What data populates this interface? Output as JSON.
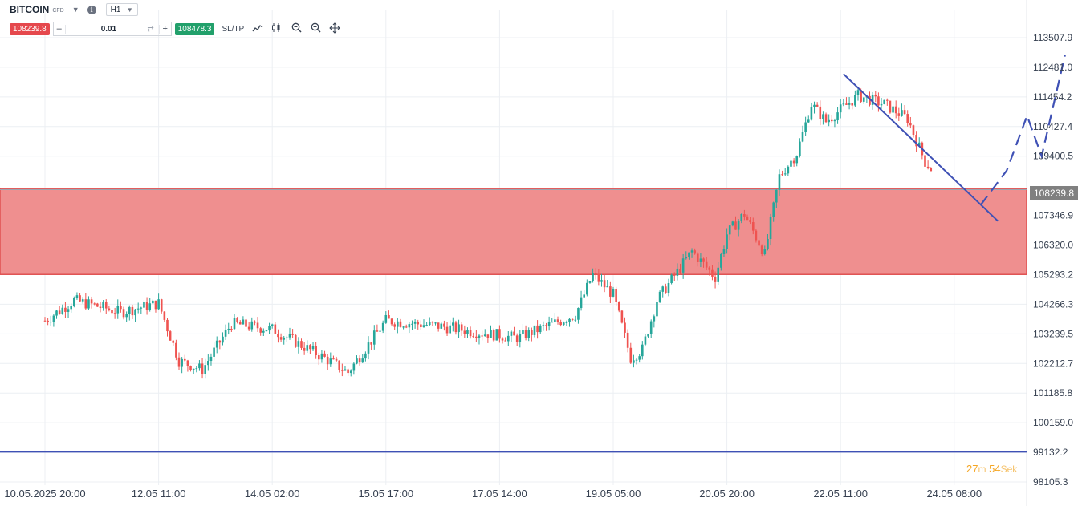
{
  "toolbar": {
    "symbol": "BITCOIN",
    "symbol_tag": "CFD",
    "timeframe": "H1",
    "sell_price": "108239.8",
    "minus": "–",
    "quantity": "0.01",
    "plus": "+",
    "buy_price": "108478.3",
    "sltp_label": "SL/TP",
    "icons": [
      "chart-type-icon",
      "indicators-icon",
      "zoom-out-icon",
      "zoom-in-icon",
      "crosshair-icon"
    ]
  },
  "price_tag": "108239.8",
  "timer": {
    "min": "27",
    "min_unit": "m",
    "sec": "54",
    "sec_unit": "Sek"
  },
  "colors": {
    "up": "#26a69a",
    "down": "#ef5350",
    "zone_fill": "#ef8f8f",
    "zone_border": "#e05050",
    "drawing": "#3f51b5",
    "grid": "#eceff3",
    "price_tag_bg": "#808080",
    "timer": "#f5a623"
  },
  "chart_data": {
    "type": "candlestick",
    "title": "",
    "y_ticks": [
      "113507.9",
      "112481.0",
      "111454.2",
      "110427.4",
      "109400.5",
      "107346.9",
      "106320.0",
      "105293.2",
      "104266.3",
      "103239.5",
      "102212.7",
      "101185.8",
      "100159.0",
      "99132.2",
      "98105.3"
    ],
    "x_ticks": [
      "10.05.2025 20:00",
      "12.05 11:00",
      "14.05 02:00",
      "15.05 17:00",
      "17.05 14:00",
      "19.05 05:00",
      "20.05 20:00",
      "22.05 11:00",
      "24.05 08:00"
    ],
    "ylim": [
      98105.3,
      113507.9
    ],
    "current_price": 108239.8,
    "resistance_zone": [
      105300,
      108280
    ],
    "support_line": 99150,
    "trendline": [
      {
        "x": "22.05 06:00",
        "y": 112250
      },
      {
        "x": "24.05 11:00",
        "y": 107150
      }
    ],
    "projection": [
      {
        "x": "24.05 05:00",
        "y": 107700
      },
      {
        "x": "24.05 14:00",
        "y": 108900
      },
      {
        "x": "24.05 21:00",
        "y": 110800
      },
      {
        "x": "25.05 02:00",
        "y": 109400
      },
      {
        "x": "25.05 10:00",
        "y": 112900
      }
    ],
    "candles_anchors": [
      {
        "x": "10.05.2025 20:00",
        "close": 103700
      },
      {
        "x": "11.05 06:00",
        "close": 104400
      },
      {
        "x": "11.05 22:00",
        "close": 104000
      },
      {
        "x": "12.05 11:00",
        "close": 104300
      },
      {
        "x": "12.05 18:00",
        "close": 102300
      },
      {
        "x": "13.05 02:00",
        "close": 102000
      },
      {
        "x": "13.05 12:00",
        "close": 103600
      },
      {
        "x": "14.05 02:00",
        "close": 103400
      },
      {
        "x": "14.05 20:00",
        "close": 102400
      },
      {
        "x": "15.05 04:00",
        "close": 101900
      },
      {
        "x": "15.05 17:00",
        "close": 103700
      },
      {
        "x": "16.05 12:00",
        "close": 103500
      },
      {
        "x": "17.05 00:00",
        "close": 103300
      },
      {
        "x": "17.05 14:00",
        "close": 103100
      },
      {
        "x": "18.05 10:00",
        "close": 103900
      },
      {
        "x": "18.05 16:00",
        "close": 105300
      },
      {
        "x": "18.05 23:00",
        "close": 104600
      },
      {
        "x": "19.05 05:00",
        "close": 102400
      },
      {
        "x": "19.05 09:00",
        "close": 102700
      },
      {
        "x": "19.05 14:00",
        "close": 104400
      },
      {
        "x": "20.05 02:00",
        "close": 106100
      },
      {
        "x": "20.05 10:00",
        "close": 105200
      },
      {
        "x": "20.05 14:00",
        "close": 106700
      },
      {
        "x": "20.05 20:00",
        "close": 107400
      },
      {
        "x": "21.05 03:00",
        "close": 106000
      },
      {
        "x": "21.05 08:00",
        "close": 108700
      },
      {
        "x": "21.05 14:00",
        "close": 109500
      },
      {
        "x": "21.05 19:00",
        "close": 111200
      },
      {
        "x": "22.05 00:00",
        "close": 110600
      },
      {
        "x": "22.05 11:00",
        "close": 111500
      },
      {
        "x": "22.05 20:00",
        "close": 111200
      },
      {
        "x": "23.05 04:00",
        "close": 110700
      },
      {
        "x": "23.05 10:00",
        "close": 109200
      },
      {
        "x": "23.05 16:00",
        "close": 108500
      },
      {
        "x": "23.05 22:00",
        "close": 107700
      },
      {
        "x": "24.05 04:00",
        "close": 108240
      }
    ]
  }
}
